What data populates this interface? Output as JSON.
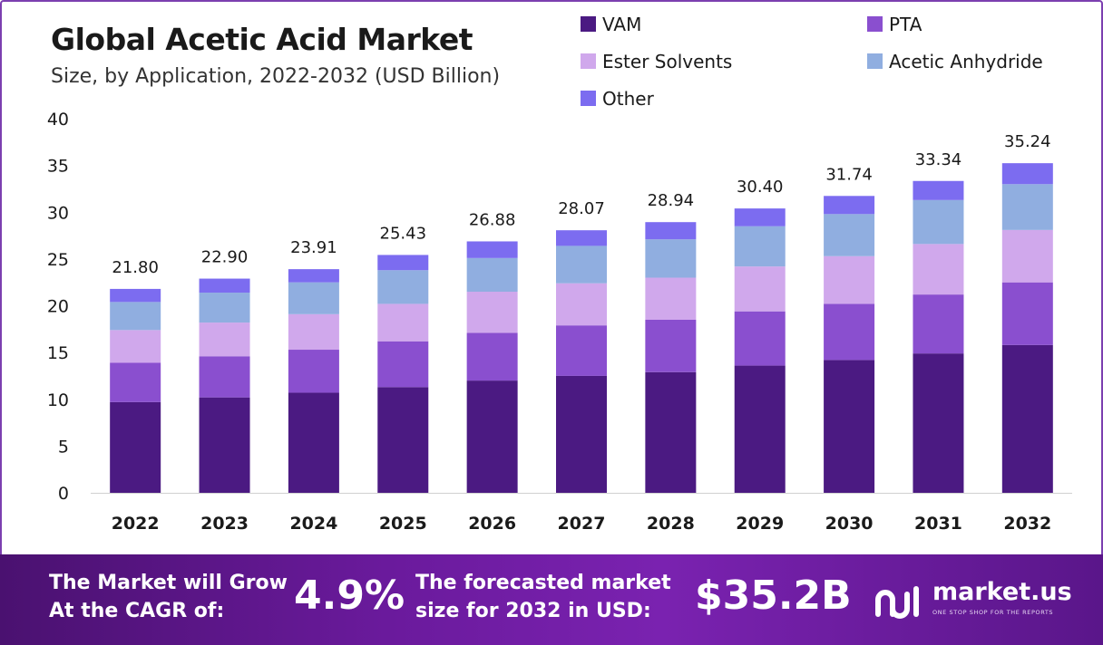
{
  "header": {
    "title": "Global Acetic Acid Market",
    "subtitle": "Size, by Application, 2022-2032 (USD Billion)"
  },
  "chart_data": {
    "type": "bar",
    "stacked": true,
    "categories": [
      "2022",
      "2023",
      "2024",
      "2025",
      "2026",
      "2027",
      "2028",
      "2029",
      "2030",
      "2031",
      "2032"
    ],
    "series": [
      {
        "name": "VAM",
        "color": "#4b1a82",
        "values": [
          9.7,
          10.2,
          10.7,
          11.3,
          12.0,
          12.5,
          12.9,
          13.6,
          14.2,
          14.9,
          15.8
        ]
      },
      {
        "name": "PTA",
        "color": "#8a4fcf",
        "values": [
          4.2,
          4.4,
          4.6,
          4.9,
          5.1,
          5.4,
          5.6,
          5.8,
          6.0,
          6.3,
          6.7
        ]
      },
      {
        "name": "Ester Solvents",
        "color": "#d0a8ec",
        "values": [
          3.5,
          3.6,
          3.8,
          4.0,
          4.4,
          4.5,
          4.5,
          4.8,
          5.1,
          5.4,
          5.6
        ]
      },
      {
        "name": "Acetic Anhydride",
        "color": "#90aee0",
        "values": [
          3.0,
          3.2,
          3.4,
          3.6,
          3.6,
          4.0,
          4.1,
          4.3,
          4.5,
          4.7,
          4.9
        ]
      },
      {
        "name": "Other",
        "color": "#7c6cf0",
        "values": [
          1.4,
          1.5,
          1.41,
          1.63,
          1.78,
          1.67,
          1.84,
          1.9,
          1.94,
          2.04,
          2.24
        ]
      }
    ],
    "totals_labels": [
      "21.80",
      "22.90",
      "23.91",
      "25.43",
      "26.88",
      "28.07",
      "28.94",
      "30.40",
      "31.74",
      "33.34",
      "35.24"
    ],
    "totals": [
      21.8,
      22.9,
      23.91,
      25.43,
      26.88,
      28.07,
      28.94,
      30.4,
      31.74,
      33.34,
      35.24
    ],
    "ylim": [
      0,
      40
    ],
    "yticks": [
      "0",
      "5",
      "10",
      "15",
      "20",
      "25",
      "30",
      "35",
      "40"
    ],
    "legend_position": "top-right",
    "grid": false
  },
  "banner": {
    "cagr_line1": "The Market will Grow",
    "cagr_line2": "At the CAGR of:",
    "cagr_value": "4.9%",
    "forecast_line1": "The forecasted market",
    "forecast_line2": "size for 2032 in USD:",
    "forecast_value": "$35.2B",
    "brand_name": "market.us",
    "brand_tagline": "ONE STOP SHOP FOR THE REPORTS"
  }
}
